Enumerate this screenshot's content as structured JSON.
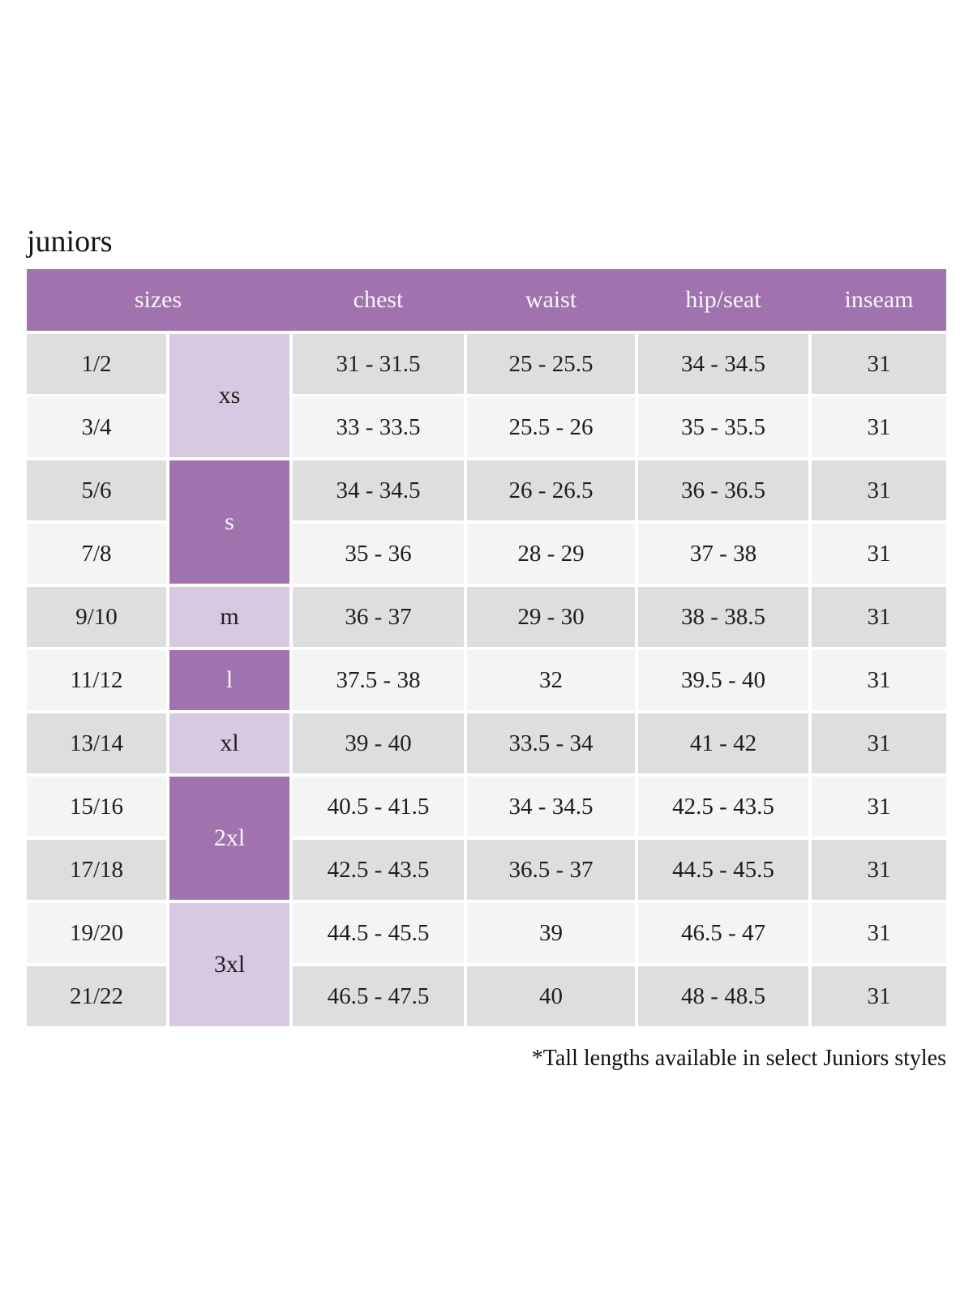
{
  "page_title": "juniors",
  "table": {
    "columns": [
      "sizes",
      "chest",
      "waist",
      "hip/seat",
      "inseam"
    ],
    "size_groups": [
      {
        "label": "xs",
        "covers": [
          "1/2",
          "3/4"
        ]
      },
      {
        "label": "s",
        "covers": [
          "5/6",
          "7/8"
        ]
      },
      {
        "label": "m",
        "covers": [
          "9/10"
        ]
      },
      {
        "label": "l",
        "covers": [
          "11/12"
        ]
      },
      {
        "label": "xl",
        "covers": [
          "13/14"
        ]
      },
      {
        "label": "2xl",
        "covers": [
          "15/16",
          "17/18"
        ]
      },
      {
        "label": "3xl",
        "covers": [
          "19/20",
          "21/22"
        ]
      }
    ],
    "rows": [
      {
        "size": "1/2",
        "chest": "31 - 31.5",
        "waist": "25 - 25.5",
        "hip_seat": "34 - 34.5",
        "inseam": "31"
      },
      {
        "size": "3/4",
        "chest": "33 - 33.5",
        "waist": "25.5 - 26",
        "hip_seat": "35 - 35.5",
        "inseam": "31"
      },
      {
        "size": "5/6",
        "chest": "34 - 34.5",
        "waist": "26 - 26.5",
        "hip_seat": "36 - 36.5",
        "inseam": "31"
      },
      {
        "size": "7/8",
        "chest": "35 - 36",
        "waist": "28 - 29",
        "hip_seat": "37 - 38",
        "inseam": "31"
      },
      {
        "size": "9/10",
        "chest": "36 - 37",
        "waist": "29 - 30",
        "hip_seat": "38 - 38.5",
        "inseam": "31"
      },
      {
        "size": "11/12",
        "chest": "37.5 - 38",
        "waist": "32",
        "hip_seat": "39.5 - 40",
        "inseam": "31"
      },
      {
        "size": "13/14",
        "chest": "39 - 40",
        "waist": "33.5 - 34",
        "hip_seat": "41 - 42",
        "inseam": "31"
      },
      {
        "size": "15/16",
        "chest": "40.5 - 41.5",
        "waist": "34 - 34.5",
        "hip_seat": "42.5 - 43.5",
        "inseam": "31"
      },
      {
        "size": "17/18",
        "chest": "42.5 - 43.5",
        "waist": "36.5 - 37",
        "hip_seat": "44.5 - 45.5",
        "inseam": "31"
      },
      {
        "size": "19/20",
        "chest": "44.5 - 45.5",
        "waist": "39",
        "hip_seat": "46.5 - 47",
        "inseam": "31"
      },
      {
        "size": "21/22",
        "chest": "46.5 - 47.5",
        "waist": "40",
        "hip_seat": "48 - 48.5",
        "inseam": "31"
      }
    ]
  },
  "footnote": "*Tall lengths available in select Juniors styles",
  "colors": {
    "header_purple": "#a173ae",
    "light_purple": "#d9c8e2",
    "row_gray_dark": "#dedede",
    "row_gray_light": "#f4f4f4",
    "header_text": "#f8f5f9",
    "body_text": "#1d1d1d"
  }
}
